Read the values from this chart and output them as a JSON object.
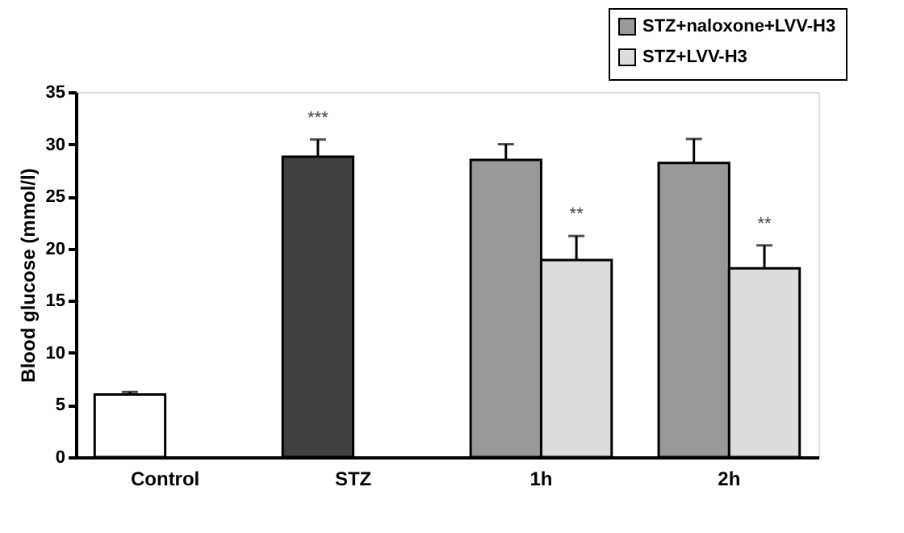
{
  "chart_data": {
    "type": "bar",
    "ylabel": "Blood glucose (mmol/l)",
    "categories": [
      "Control",
      "STZ",
      "1h",
      "2h"
    ],
    "series": [
      {
        "color": "#ffffff",
        "values": [
          6.0,
          null,
          null,
          null
        ],
        "errors": [
          [
            6.0,
            6.25
          ],
          null,
          null,
          null
        ]
      },
      {
        "color": "#404040",
        "values": [
          null,
          28.8,
          null,
          null
        ],
        "errors": [
          null,
          [
            28.8,
            30.45
          ],
          null,
          null
        ]
      },
      {
        "name": "STZ+naloxone+LVV-H3",
        "color": "#999999",
        "values": [
          null,
          null,
          28.5,
          28.2
        ],
        "errors": [
          null,
          null,
          [
            28.5,
            30.0
          ],
          [
            28.2,
            30.5
          ]
        ]
      },
      {
        "name": "STZ+LVV-H3",
        "color": "#dcdcdc",
        "values": [
          null,
          null,
          18.9,
          18.1
        ],
        "errors": [
          null,
          null,
          [
            18.9,
            21.2
          ],
          [
            18.1,
            20.3
          ]
        ]
      }
    ],
    "annotations": [
      "***",
      "**",
      "**"
    ],
    "ylim": [
      0,
      35
    ],
    "yticks": [
      0,
      5,
      10,
      15,
      20,
      25,
      30,
      35
    ],
    "grid": false,
    "legend": "top right"
  }
}
